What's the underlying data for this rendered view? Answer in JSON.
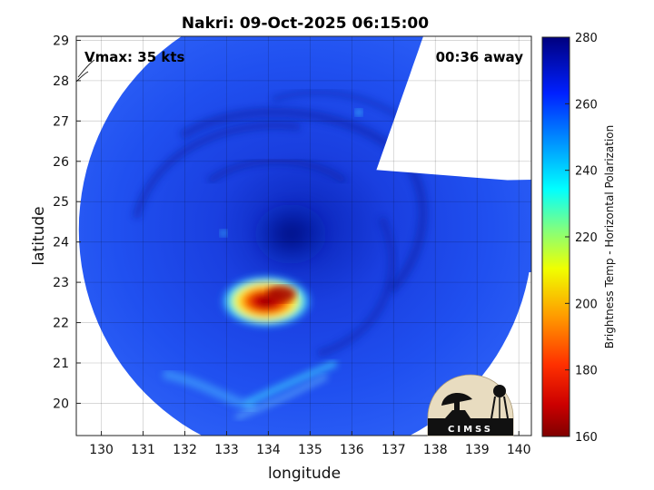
{
  "title": "Nakri: 09-Oct-2025 06:15:00",
  "annotations": {
    "vmax": "Vmax: 35 kts",
    "time_away": "00:36 away"
  },
  "logo": {
    "text": "CIMSS"
  },
  "colorbar": {
    "label": "Brightness Temp - Horizontal Polarization",
    "min": 160,
    "max": 280,
    "ticks": [
      "280",
      "260",
      "240",
      "220",
      "200",
      "180",
      "160"
    ],
    "colormap": [
      "#7f0000",
      "#ff0000",
      "#ff8000",
      "#ffff00",
      "#80ff80",
      "#00ffff",
      "#0080ff",
      "#0000ff",
      "#00008f"
    ]
  },
  "chart_data": {
    "type": "heatmap",
    "title": "Nakri: 09-Oct-2025 06:15:00",
    "xlabel": "longitude",
    "ylabel": "latitude",
    "xlim": [
      129.4,
      140.3
    ],
    "ylim": [
      19.2,
      29.1
    ],
    "xticks": [
      "130",
      "131",
      "132",
      "133",
      "134",
      "135",
      "136",
      "137",
      "138",
      "139",
      "140"
    ],
    "yticks": [
      "20",
      "21",
      "22",
      "23",
      "24",
      "25",
      "26",
      "27",
      "28",
      "29"
    ],
    "grid": true,
    "storm_center": {
      "lon": 134.3,
      "lat": 22.7
    },
    "swath_center": {
      "lon": 134.9,
      "lat": 24.3
    },
    "background_value": 262,
    "features": [
      {
        "name": "eye-cold-core",
        "lon": 134.4,
        "lat": 22.7,
        "value": 180
      },
      {
        "name": "convective-ring",
        "lon": 134.0,
        "lat": 22.6,
        "value": 235
      },
      {
        "name": "rainband-south",
        "lon": 134.8,
        "lat": 20.4,
        "value": 245
      }
    ]
  }
}
